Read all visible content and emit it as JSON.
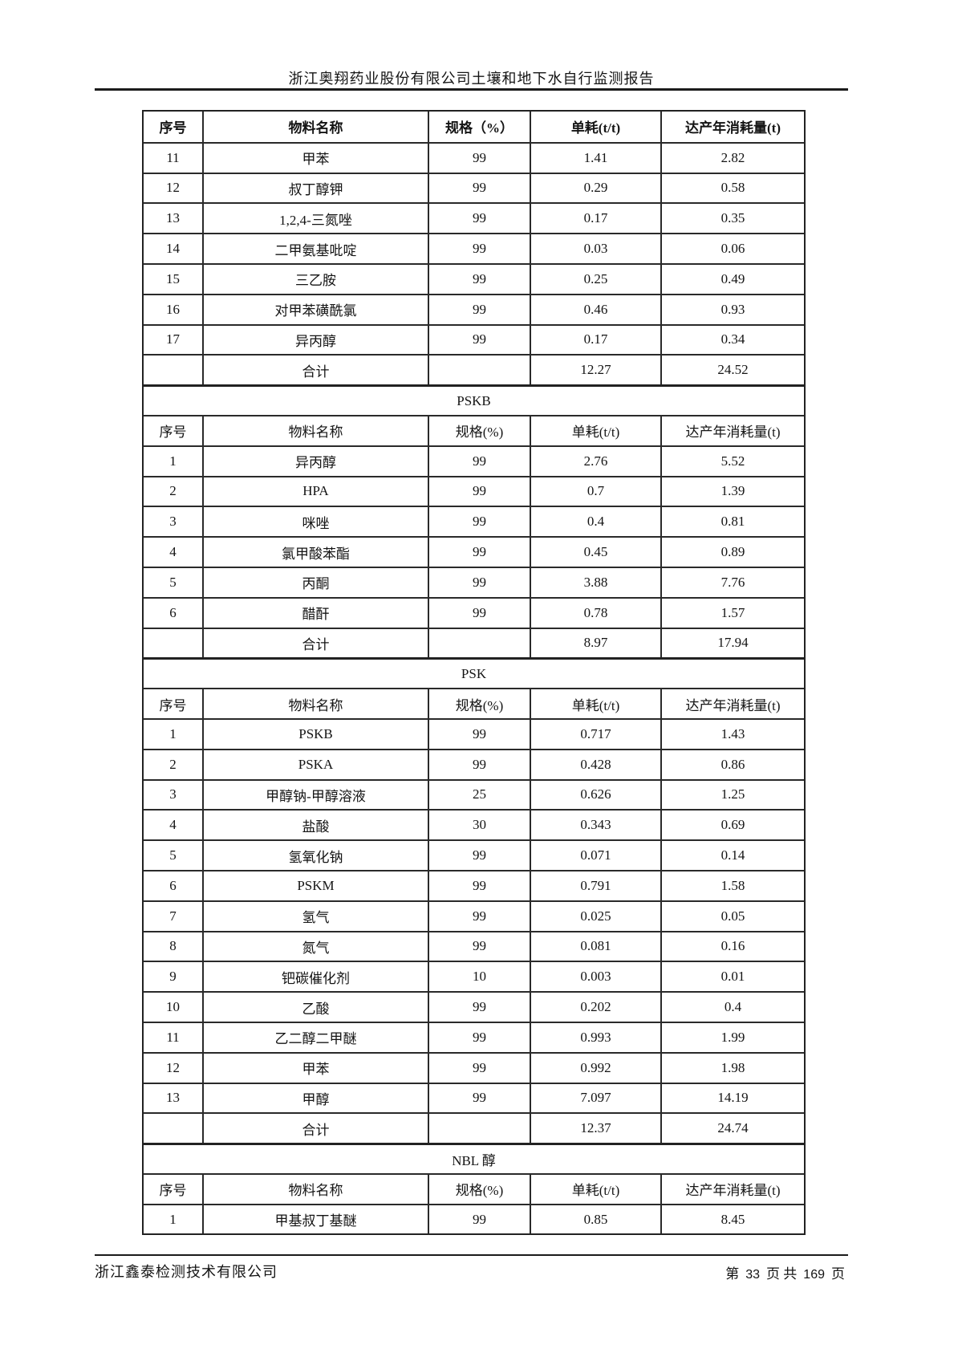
{
  "header": {
    "title": "浙江奥翔药业股份有限公司土壤和地下水自行监测报告"
  },
  "table": {
    "main_header_cols": [
      "序号",
      "物料名称",
      "规格（%）",
      "单耗(t/t)",
      "达产年消耗量(t)"
    ],
    "sub_header_cols": [
      "序号",
      "物料名称",
      "规格(%)",
      "单耗(t/t)",
      "达产年消耗量(t)"
    ],
    "total_label": "合计",
    "sections": [
      {
        "title": null,
        "header": "main",
        "rows": [
          [
            "11",
            "甲苯",
            "99",
            "1.41",
            "2.82"
          ],
          [
            "12",
            "叔丁醇钾",
            "99",
            "0.29",
            "0.58"
          ],
          [
            "13",
            "1,2,4-三氮唑",
            "99",
            "0.17",
            "0.35"
          ],
          [
            "14",
            "二甲氨基吡啶",
            "99",
            "0.03",
            "0.06"
          ],
          [
            "15",
            "三乙胺",
            "99",
            "0.25",
            "0.49"
          ],
          [
            "16",
            "对甲苯磺酰氯",
            "99",
            "0.46",
            "0.93"
          ],
          [
            "17",
            "异丙醇",
            "99",
            "0.17",
            "0.34"
          ]
        ],
        "total": {
          "unit": "12.27",
          "annual": "24.52"
        }
      },
      {
        "title": "PSKB",
        "header": "sub",
        "rows": [
          [
            "1",
            "异丙醇",
            "99",
            "2.76",
            "5.52"
          ],
          [
            "2",
            "HPA",
            "99",
            "0.7",
            "1.39"
          ],
          [
            "3",
            "咪唑",
            "99",
            "0.4",
            "0.81"
          ],
          [
            "4",
            "氯甲酸苯酯",
            "99",
            "0.45",
            "0.89"
          ],
          [
            "5",
            "丙酮",
            "99",
            "3.88",
            "7.76"
          ],
          [
            "6",
            "醋酐",
            "99",
            "0.78",
            "1.57"
          ]
        ],
        "total": {
          "unit": "8.97",
          "annual": "17.94"
        }
      },
      {
        "title": "PSK",
        "header": "sub",
        "rows": [
          [
            "1",
            "PSKB",
            "99",
            "0.717",
            "1.43"
          ],
          [
            "2",
            "PSKA",
            "99",
            "0.428",
            "0.86"
          ],
          [
            "3",
            "甲醇钠-甲醇溶液",
            "25",
            "0.626",
            "1.25"
          ],
          [
            "4",
            "盐酸",
            "30",
            "0.343",
            "0.69"
          ],
          [
            "5",
            "氢氧化钠",
            "99",
            "0.071",
            "0.14"
          ],
          [
            "6",
            "PSKM",
            "99",
            "0.791",
            "1.58"
          ],
          [
            "7",
            "氢气",
            "99",
            "0.025",
            "0.05"
          ],
          [
            "8",
            "氮气",
            "99",
            "0.081",
            "0.16"
          ],
          [
            "9",
            "钯碳催化剂",
            "10",
            "0.003",
            "0.01"
          ],
          [
            "10",
            "乙酸",
            "99",
            "0.202",
            "0.4"
          ],
          [
            "11",
            "乙二醇二甲醚",
            "99",
            "0.993",
            "1.99"
          ],
          [
            "12",
            "甲苯",
            "99",
            "0.992",
            "1.98"
          ],
          [
            "13",
            "甲醇",
            "99",
            "7.097",
            "14.19"
          ]
        ],
        "total": {
          "unit": "12.37",
          "annual": "24.74"
        }
      },
      {
        "title": "NBL 醇",
        "header": "sub",
        "rows": [
          [
            "1",
            "甲基叔丁基醚",
            "99",
            "0.85",
            "8.45"
          ]
        ],
        "total": null
      }
    ]
  },
  "footer": {
    "company": "浙江鑫泰检测技术有限公司",
    "page_label_1": "第",
    "page_number": "33",
    "page_label_2": "页 共",
    "total_pages": "169",
    "page_label_3": "页"
  }
}
